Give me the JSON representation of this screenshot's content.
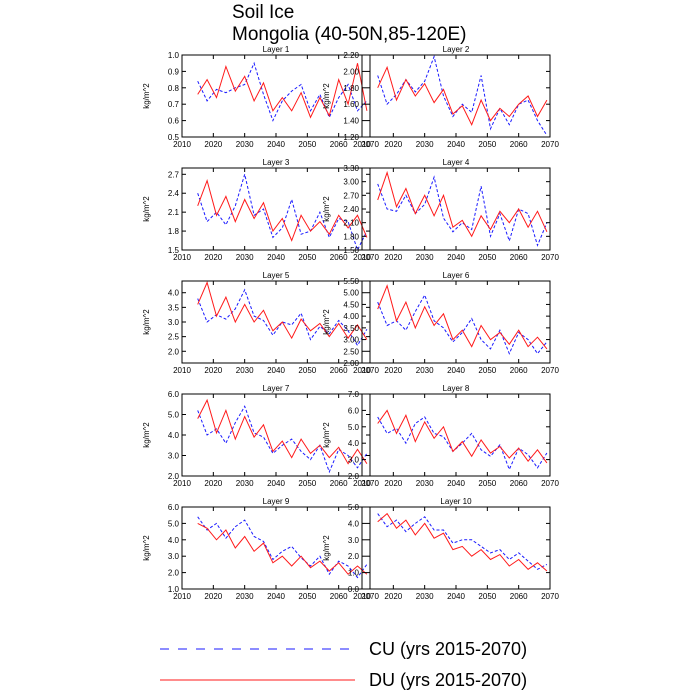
{
  "figure": {
    "title_line1": "Soil Ice",
    "title_line2": "Mongolia (40-50N,85-120E)"
  },
  "legend": [
    {
      "label": "CU (yrs 2015-2070)",
      "color": "#1a1aff",
      "dash": "dashed"
    },
    {
      "label": "DU (yrs 2015-2070)",
      "color": "#ff1a1a",
      "dash": "solid"
    }
  ],
  "chart_data": [
    {
      "type": "line",
      "title": "Layer 1",
      "ylabel": "kg/m^2",
      "xlim": [
        2010,
        2070
      ],
      "xticks": [
        "2010",
        "2020",
        "2030",
        "2040",
        "2050",
        "2060",
        "2070"
      ],
      "ylim": [
        0.5,
        1.0
      ],
      "yticks": [
        "0.5",
        "0.6",
        "0.7",
        "0.8",
        "0.9",
        "1.0"
      ],
      "x": [
        2015,
        2018,
        2021,
        2024,
        2027,
        2030,
        2033,
        2036,
        2039,
        2042,
        2045,
        2048,
        2051,
        2054,
        2057,
        2060,
        2063,
        2066,
        2069
      ],
      "series": [
        {
          "name": "CU",
          "values": [
            0.84,
            0.72,
            0.79,
            0.77,
            0.8,
            0.82,
            0.95,
            0.76,
            0.6,
            0.72,
            0.78,
            0.82,
            0.66,
            0.76,
            0.62,
            0.74,
            0.82,
            0.66,
            0.72
          ]
        },
        {
          "name": "DU",
          "values": [
            0.76,
            0.85,
            0.74,
            0.93,
            0.78,
            0.87,
            0.72,
            0.83,
            0.66,
            0.74,
            0.66,
            0.77,
            0.62,
            0.74,
            0.63,
            0.85,
            0.7,
            0.95,
            0.66
          ]
        }
      ]
    },
    {
      "type": "line",
      "title": "Layer 2",
      "ylabel": "kg/m^2",
      "xlim": [
        2010,
        2070
      ],
      "xticks": [
        "2010",
        "2020",
        "2030",
        "2040",
        "2050",
        "2060",
        "2070"
      ],
      "ylim": [
        1.2,
        2.2
      ],
      "yticks": [
        "1.20",
        "1.40",
        "1.60",
        "1.80",
        "2.00",
        "2.20"
      ],
      "x": [
        2015,
        2018,
        2021,
        2024,
        2027,
        2030,
        2033,
        2036,
        2039,
        2042,
        2045,
        2048,
        2051,
        2054,
        2057,
        2060,
        2063,
        2066,
        2069
      ],
      "series": [
        {
          "name": "CU",
          "values": [
            1.95,
            1.6,
            1.72,
            1.9,
            1.75,
            1.88,
            2.18,
            1.7,
            1.45,
            1.6,
            1.5,
            1.95,
            1.3,
            1.55,
            1.35,
            1.6,
            1.65,
            1.4,
            1.22
          ]
        },
        {
          "name": "DU",
          "values": [
            1.8,
            2.05,
            1.65,
            1.9,
            1.7,
            1.85,
            1.62,
            1.78,
            1.48,
            1.58,
            1.35,
            1.65,
            1.4,
            1.55,
            1.45,
            1.6,
            1.7,
            1.45,
            1.65
          ]
        }
      ]
    },
    {
      "type": "line",
      "title": "Layer 3",
      "ylabel": "kg/m^2",
      "xlim": [
        2010,
        2070
      ],
      "xticks": [
        "2010",
        "2020",
        "2030",
        "2040",
        "2050",
        "2060",
        "2070"
      ],
      "ylim": [
        1.5,
        2.8
      ],
      "yticks": [
        "1.5",
        "1.8",
        "2.1",
        "2.4",
        "2.7"
      ],
      "x": [
        2015,
        2018,
        2021,
        2024,
        2027,
        2030,
        2033,
        2036,
        2039,
        2042,
        2045,
        2048,
        2051,
        2054,
        2057,
        2060,
        2063,
        2066,
        2069
      ],
      "series": [
        {
          "name": "CU",
          "values": [
            2.4,
            1.95,
            2.1,
            1.9,
            2.2,
            2.7,
            2.05,
            2.15,
            1.7,
            1.85,
            2.3,
            1.75,
            1.8,
            2.1,
            1.7,
            2.0,
            1.95,
            1.5,
            1.8
          ]
        },
        {
          "name": "DU",
          "values": [
            2.2,
            2.6,
            2.05,
            2.35,
            1.95,
            2.3,
            2.0,
            2.25,
            1.8,
            2.0,
            1.65,
            2.05,
            1.8,
            1.95,
            1.75,
            2.05,
            1.85,
            2.05,
            1.7
          ]
        }
      ]
    },
    {
      "type": "line",
      "title": "Layer 4",
      "ylabel": "kg/m^2",
      "xlim": [
        2010,
        2070
      ],
      "xticks": [
        "2010",
        "2020",
        "2030",
        "2040",
        "2050",
        "2060",
        "2070"
      ],
      "ylim": [
        1.5,
        3.3
      ],
      "yticks": [
        "1.50",
        "1.80",
        "2.10",
        "2.40",
        "2.70",
        "3.00",
        "3.30"
      ],
      "x": [
        2015,
        2018,
        2021,
        2024,
        2027,
        2030,
        2033,
        2036,
        2039,
        2042,
        2045,
        2048,
        2051,
        2054,
        2057,
        2060,
        2063,
        2066,
        2069
      ],
      "series": [
        {
          "name": "CU",
          "values": [
            2.95,
            2.4,
            2.35,
            2.7,
            2.3,
            2.5,
            3.1,
            2.2,
            1.9,
            2.1,
            1.95,
            2.9,
            1.8,
            2.3,
            1.7,
            2.4,
            2.3,
            1.6,
            2.1
          ]
        },
        {
          "name": "DU",
          "values": [
            2.6,
            3.2,
            2.45,
            2.85,
            2.3,
            2.7,
            2.25,
            2.7,
            2.0,
            2.15,
            1.8,
            2.25,
            1.95,
            2.35,
            2.1,
            2.4,
            2.0,
            2.35,
            1.9
          ]
        }
      ]
    },
    {
      "type": "line",
      "title": "Layer 5",
      "ylabel": "kg/m^2",
      "xlim": [
        2010,
        2070
      ],
      "xticks": [
        "2010",
        "2020",
        "2030",
        "2040",
        "2050",
        "2060",
        "2070"
      ],
      "ylim": [
        1.6,
        4.4
      ],
      "yticks": [
        "2.0",
        "2.5",
        "3.0",
        "3.5",
        "4.0"
      ],
      "x": [
        2015,
        2018,
        2021,
        2024,
        2027,
        2030,
        2033,
        2036,
        2039,
        2042,
        2045,
        2048,
        2051,
        2054,
        2057,
        2060,
        2063,
        2066,
        2069
      ],
      "series": [
        {
          "name": "CU",
          "values": [
            3.8,
            3.0,
            3.25,
            3.1,
            3.45,
            4.1,
            3.2,
            3.05,
            2.55,
            3.0,
            2.9,
            3.3,
            2.4,
            2.85,
            2.6,
            3.05,
            2.7,
            2.2,
            2.75
          ]
        },
        {
          "name": "DU",
          "values": [
            3.6,
            4.35,
            3.2,
            3.85,
            3.0,
            3.6,
            3.0,
            3.4,
            2.7,
            3.0,
            2.45,
            3.1,
            2.7,
            2.95,
            2.5,
            2.95,
            2.45,
            2.9,
            2.4
          ]
        }
      ]
    },
    {
      "type": "line",
      "title": "Layer 6",
      "ylabel": "kg/m^2",
      "xlim": [
        2010,
        2070
      ],
      "xticks": [
        "2010",
        "2020",
        "2030",
        "2040",
        "2050",
        "2060",
        "2070"
      ],
      "ylim": [
        2.0,
        5.5
      ],
      "yticks": [
        "2.00",
        "2.50",
        "3.00",
        "3.50",
        "4.00",
        "4.50",
        "5.00",
        "5.50"
      ],
      "x": [
        2015,
        2018,
        2021,
        2024,
        2027,
        2030,
        2033,
        2036,
        2039,
        2042,
        2045,
        2048,
        2051,
        2054,
        2057,
        2060,
        2063,
        2066,
        2069
      ],
      "series": [
        {
          "name": "CU",
          "values": [
            4.6,
            3.6,
            3.8,
            3.4,
            4.2,
            4.9,
            3.8,
            3.5,
            2.9,
            3.3,
            3.9,
            3.0,
            2.6,
            3.4,
            2.4,
            3.3,
            3.0,
            2.4,
            2.9
          ]
        },
        {
          "name": "DU",
          "values": [
            4.3,
            5.3,
            3.8,
            4.6,
            3.5,
            4.4,
            3.6,
            4.1,
            3.0,
            3.4,
            2.7,
            3.6,
            3.0,
            3.3,
            2.8,
            3.4,
            2.7,
            3.1,
            2.6
          ]
        }
      ]
    },
    {
      "type": "line",
      "title": "Layer 7",
      "ylabel": "kg/m^2",
      "xlim": [
        2010,
        2070
      ],
      "xticks": [
        "2010",
        "2020",
        "2030",
        "2040",
        "2050",
        "2060",
        "2070"
      ],
      "ylim": [
        2.0,
        6.0
      ],
      "yticks": [
        "2.0",
        "3.0",
        "4.0",
        "5.0",
        "6.0"
      ],
      "x": [
        2015,
        2018,
        2021,
        2024,
        2027,
        2030,
        2033,
        2036,
        2039,
        2042,
        2045,
        2048,
        2051,
        2054,
        2057,
        2060,
        2063,
        2066,
        2069
      ],
      "series": [
        {
          "name": "CU",
          "values": [
            5.2,
            4.0,
            4.3,
            3.6,
            4.6,
            5.4,
            4.1,
            3.9,
            3.1,
            3.5,
            3.8,
            3.2,
            2.8,
            3.5,
            2.2,
            3.3,
            3.0,
            2.4,
            3.1
          ]
        },
        {
          "name": "DU",
          "values": [
            4.8,
            5.7,
            4.1,
            5.2,
            3.8,
            4.9,
            3.9,
            4.5,
            3.2,
            3.7,
            2.9,
            3.8,
            3.1,
            3.5,
            2.9,
            3.4,
            2.6,
            3.3,
            2.6
          ]
        }
      ]
    },
    {
      "type": "line",
      "title": "Layer 8",
      "ylabel": "kg/m^2",
      "xlim": [
        2010,
        2070
      ],
      "xticks": [
        "2010",
        "2020",
        "2030",
        "2040",
        "2050",
        "2060",
        "2070"
      ],
      "ylim": [
        2.0,
        7.0
      ],
      "yticks": [
        "2.0",
        "3.0",
        "4.0",
        "5.0",
        "6.0",
        "7.0"
      ],
      "x": [
        2015,
        2018,
        2021,
        2024,
        2027,
        2030,
        2033,
        2036,
        2039,
        2042,
        2045,
        2048,
        2051,
        2054,
        2057,
        2060,
        2063,
        2066,
        2069
      ],
      "series": [
        {
          "name": "CU",
          "values": [
            5.6,
            4.6,
            4.9,
            4.0,
            5.2,
            5.6,
            4.6,
            4.4,
            3.5,
            4.0,
            4.6,
            3.6,
            3.2,
            3.9,
            2.4,
            3.7,
            3.3,
            2.5,
            3.4
          ]
        },
        {
          "name": "DU",
          "values": [
            5.2,
            6.0,
            4.6,
            5.7,
            4.1,
            5.3,
            4.3,
            5.0,
            3.5,
            4.1,
            3.2,
            4.2,
            3.4,
            3.8,
            3.1,
            3.7,
            2.9,
            3.6,
            2.8
          ]
        }
      ]
    },
    {
      "type": "line",
      "title": "Layer 9",
      "ylabel": "kg/m^2",
      "xlim": [
        2010,
        2070
      ],
      "xticks": [
        "2010",
        "2020",
        "2030",
        "2040",
        "2050",
        "2060",
        "2070"
      ],
      "ylim": [
        1.0,
        6.0
      ],
      "yticks": [
        "1.0",
        "2.0",
        "3.0",
        "4.0",
        "5.0",
        "6.0"
      ],
      "x": [
        2015,
        2018,
        2021,
        2024,
        2027,
        2030,
        2033,
        2036,
        2039,
        2042,
        2045,
        2048,
        2051,
        2054,
        2057,
        2060,
        2063,
        2066,
        2069
      ],
      "series": [
        {
          "name": "CU",
          "values": [
            5.4,
            4.6,
            5.0,
            4.1,
            4.8,
            5.2,
            4.2,
            3.9,
            2.8,
            3.3,
            3.6,
            2.9,
            2.4,
            3.0,
            1.9,
            2.7,
            2.4,
            1.7,
            2.5
          ]
        },
        {
          "name": "DU",
          "values": [
            5.0,
            4.7,
            4.0,
            4.6,
            3.5,
            4.2,
            3.3,
            3.8,
            2.6,
            3.0,
            2.4,
            3.0,
            2.3,
            2.7,
            2.1,
            2.6,
            1.9,
            2.4,
            1.9
          ]
        }
      ]
    },
    {
      "type": "line",
      "title": "Layer 10",
      "ylabel": "kg/m^2",
      "xlim": [
        2010,
        2070
      ],
      "xticks": [
        "2010",
        "2020",
        "2030",
        "2040",
        "2050",
        "2060",
        "2070"
      ],
      "ylim": [
        0.0,
        5.0
      ],
      "yticks": [
        "0.0",
        "1.0",
        "2.0",
        "3.0",
        "4.0",
        "5.0"
      ],
      "x": [
        2015,
        2018,
        2021,
        2024,
        2027,
        2030,
        2033,
        2036,
        2039,
        2042,
        2045,
        2048,
        2051,
        2054,
        2057,
        2060,
        2063,
        2066,
        2069
      ],
      "series": [
        {
          "name": "CU",
          "values": [
            4.6,
            3.8,
            4.2,
            3.5,
            4.0,
            4.4,
            3.6,
            3.6,
            2.8,
            3.0,
            3.0,
            2.6,
            2.2,
            2.4,
            1.8,
            2.2,
            1.7,
            1.2,
            1.5
          ]
        },
        {
          "name": "DU",
          "values": [
            4.1,
            4.6,
            3.7,
            4.2,
            3.3,
            4.0,
            3.1,
            3.4,
            2.4,
            2.6,
            2.0,
            2.4,
            1.8,
            2.1,
            1.4,
            1.8,
            1.2,
            1.6,
            1.1
          ]
        }
      ]
    }
  ]
}
